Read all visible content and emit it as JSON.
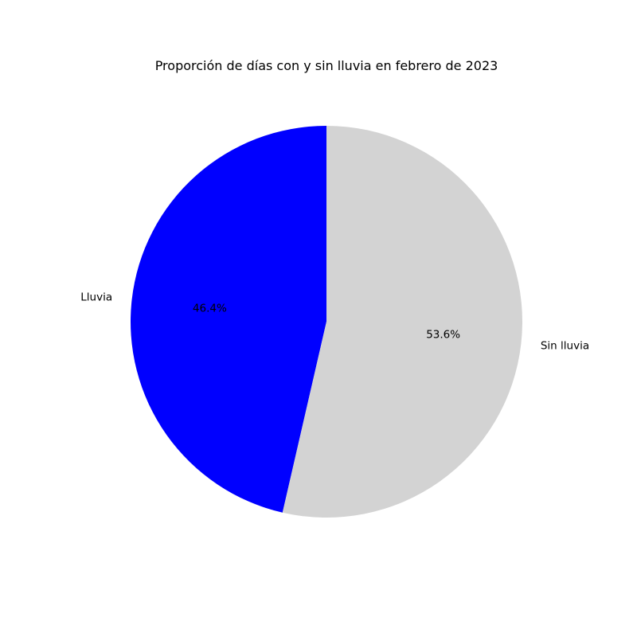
{
  "chart_data": {
    "type": "pie",
    "title": "Proporción de días con y sin lluvia en febrero de 2023",
    "slices": [
      {
        "label": "Lluvia",
        "value": 46.4,
        "pct_label": "46.4%",
        "color": "#0000ff"
      },
      {
        "label": "Sin lluvia",
        "value": 53.6,
        "pct_label": "53.6%",
        "color": "#d3d3d3"
      }
    ],
    "start_angle_deg": 90,
    "direction": "counterclockwise",
    "legend": "none"
  }
}
